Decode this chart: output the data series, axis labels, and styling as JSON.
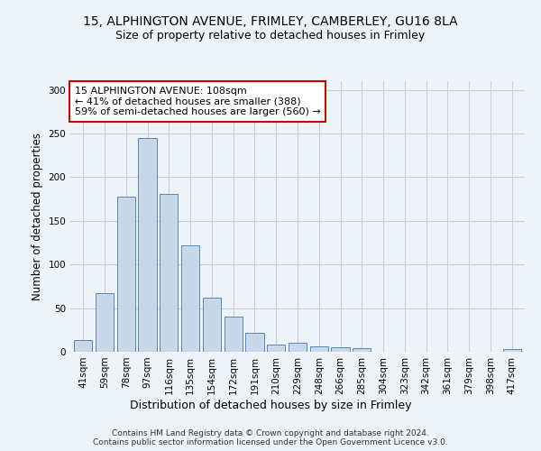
{
  "title1": "15, ALPHINGTON AVENUE, FRIMLEY, CAMBERLEY, GU16 8LA",
  "title2": "Size of property relative to detached houses in Frimley",
  "xlabel": "Distribution of detached houses by size in Frimley",
  "ylabel": "Number of detached properties",
  "categories": [
    "41sqm",
    "59sqm",
    "78sqm",
    "97sqm",
    "116sqm",
    "135sqm",
    "154sqm",
    "172sqm",
    "191sqm",
    "210sqm",
    "229sqm",
    "248sqm",
    "266sqm",
    "285sqm",
    "304sqm",
    "323sqm",
    "342sqm",
    "361sqm",
    "379sqm",
    "398sqm",
    "417sqm"
  ],
  "values": [
    13,
    67,
    178,
    245,
    181,
    122,
    62,
    40,
    22,
    8,
    10,
    6,
    5,
    4,
    0,
    0,
    0,
    0,
    0,
    0,
    3
  ],
  "bar_color": "#c8d8e8",
  "bar_edge_color": "#5588bb",
  "highlight_bar_index": 3,
  "annotation_text": "15 ALPHINGTON AVENUE: 108sqm\n← 41% of detached houses are smaller (388)\n59% of semi-detached houses are larger (560) →",
  "annotation_box_color": "#ffffff",
  "annotation_box_edge": "#cc0000",
  "ylim": [
    0,
    310
  ],
  "grid_color": "#ccccdd",
  "background_color": "#eef3f8",
  "plot_bg_color": "#eef3f8",
  "footer_line1": "Contains HM Land Registry data © Crown copyright and database right 2024.",
  "footer_line2": "Contains public sector information licensed under the Open Government Licence v3.0.",
  "title1_fontsize": 10,
  "title2_fontsize": 9,
  "xlabel_fontsize": 9,
  "ylabel_fontsize": 8.5,
  "tick_fontsize": 7.5,
  "annotation_fontsize": 8,
  "footer_fontsize": 6.5
}
